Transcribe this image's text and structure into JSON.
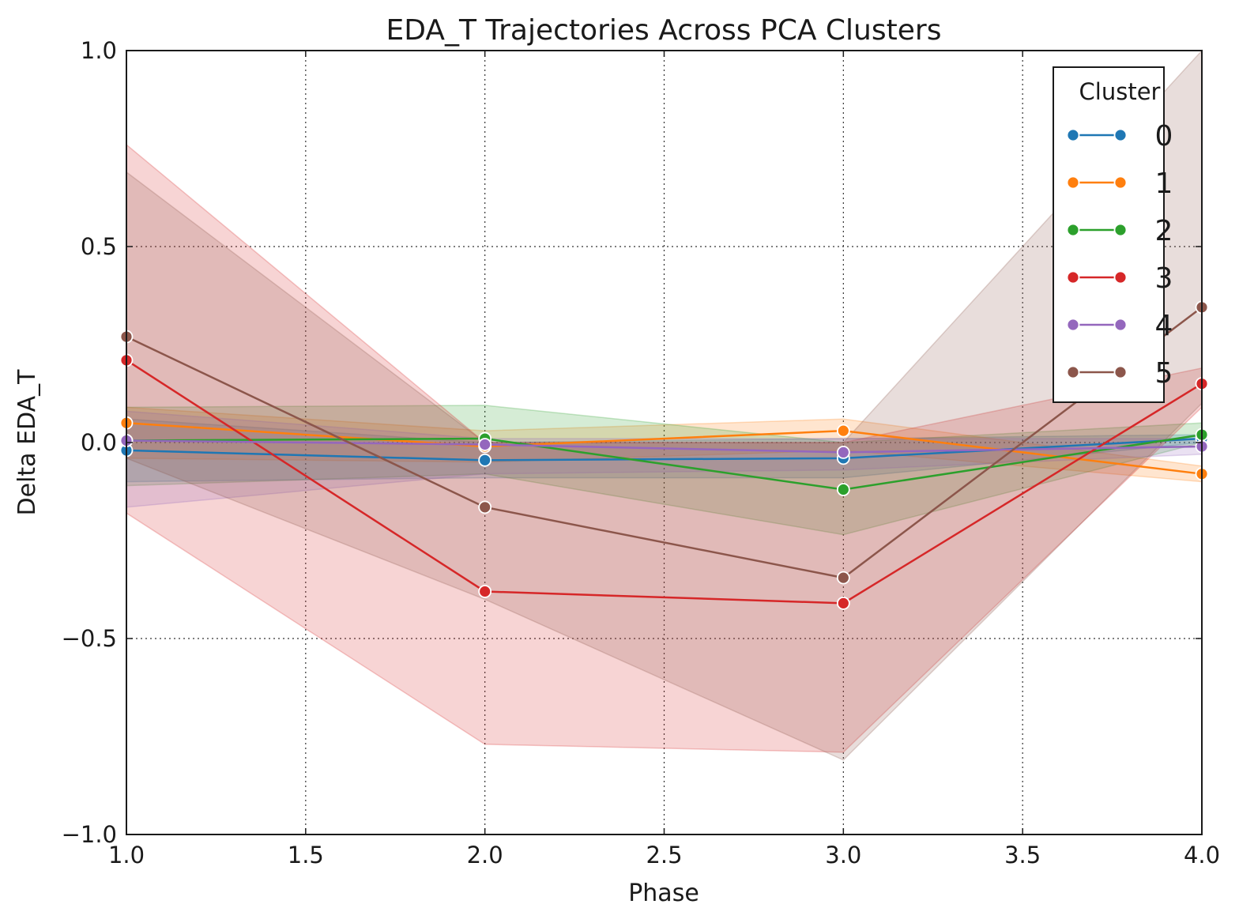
{
  "chart_data": {
    "type": "line",
    "title": "EDA_T Trajectories Across PCA Clusters",
    "xlabel": "Phase",
    "ylabel": "Delta EDA_T",
    "xlim": [
      1.0,
      4.0
    ],
    "ylim": [
      -1.0,
      1.0
    ],
    "xticks": [
      1.0,
      1.5,
      2.0,
      2.5,
      3.0,
      3.5,
      4.0
    ],
    "xtick_labels": [
      "1.0",
      "1.5",
      "2.0",
      "2.5",
      "3.0",
      "3.5",
      "4.0"
    ],
    "yticks": [
      -1.0,
      -0.5,
      0.0,
      0.5,
      1.0
    ],
    "ytick_labels": [
      "−1.0",
      "−0.5",
      "0.0",
      "0.5",
      "1.0"
    ],
    "grid": true,
    "legend": {
      "title": "Cluster",
      "placement": "top-right"
    },
    "x": [
      1,
      2,
      3,
      4
    ],
    "series": [
      {
        "name": "0",
        "color": "#1f77b4",
        "values": [
          -0.02,
          -0.045,
          -0.04,
          0.01
        ],
        "ci_low": [
          -0.1,
          -0.09,
          -0.09,
          0.0
        ],
        "ci_high": [
          0.06,
          0.0,
          0.01,
          0.02
        ]
      },
      {
        "name": "1",
        "color": "#ff7f0e",
        "values": [
          0.05,
          -0.01,
          0.03,
          -0.08
        ],
        "ci_low": [
          -0.04,
          -0.05,
          -0.02,
          -0.1
        ],
        "ci_high": [
          0.09,
          0.03,
          0.06,
          -0.06
        ]
      },
      {
        "name": "2",
        "color": "#2ca02c",
        "values": [
          0.005,
          0.01,
          -0.12,
          0.02
        ],
        "ci_low": [
          -0.11,
          -0.08,
          -0.235,
          0.0
        ],
        "ci_high": [
          0.09,
          0.095,
          0.0,
          0.05
        ]
      },
      {
        "name": "3",
        "color": "#d62728",
        "values": [
          0.21,
          -0.38,
          -0.41,
          0.15
        ],
        "ci_low": [
          -0.18,
          -0.77,
          -0.79,
          0.09
        ],
        "ci_high": [
          0.76,
          0.0,
          0.0,
          0.19
        ]
      },
      {
        "name": "4",
        "color": "#9467bd",
        "values": [
          0.005,
          -0.005,
          -0.025,
          -0.01
        ],
        "ci_low": [
          -0.165,
          -0.08,
          -0.07,
          -0.03
        ],
        "ci_high": [
          0.08,
          0.01,
          0.01,
          0.01
        ]
      },
      {
        "name": "5",
        "color": "#8c564b",
        "values": [
          0.27,
          -0.165,
          -0.345,
          0.345
        ],
        "ci_low": [
          -0.04,
          -0.4,
          -0.81,
          0.1
        ],
        "ci_high": [
          0.69,
          0.0,
          0.0,
          1.0
        ]
      }
    ]
  }
}
